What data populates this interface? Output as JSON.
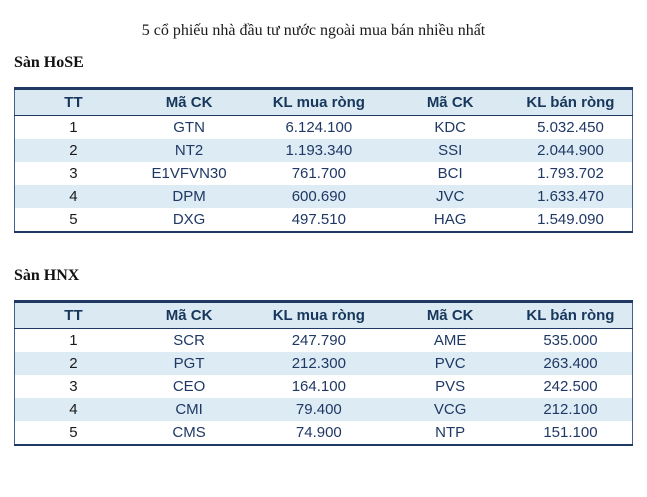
{
  "page": {
    "title": "5 cổ phiếu nhà đầu tư nước ngoài mua bán nhiều nhất"
  },
  "columns": {
    "tt": "TT",
    "ma_ck_mua": "Mã CK",
    "kl_mua_rong": "KL mua ròng",
    "ma_ck_ban": "Mã CK",
    "kl_ban_rong": "KL bán ròng"
  },
  "sections": [
    {
      "label": "Sàn HoSE",
      "rows": [
        [
          "1",
          "GTN",
          "6.124.100",
          "KDC",
          "5.032.450"
        ],
        [
          "2",
          "NT2",
          "1.193.340",
          "SSI",
          "2.044.900"
        ],
        [
          "3",
          "E1VFVN30",
          "761.700",
          "BCI",
          "1.793.702"
        ],
        [
          "4",
          "DPM",
          "600.690",
          "JVC",
          "1.633.470"
        ],
        [
          "5",
          "DXG",
          "497.510",
          "HAG",
          "1.549.090"
        ]
      ]
    },
    {
      "label": "Sàn HNX",
      "rows": [
        [
          "1",
          "SCR",
          "247.790",
          "AME",
          "535.000"
        ],
        [
          "2",
          "PGT",
          "212.300",
          "PVC",
          "263.400"
        ],
        [
          "3",
          "CEO",
          "164.100",
          "PVS",
          "242.500"
        ],
        [
          "4",
          "CMI",
          "79.400",
          "VCG",
          "212.100"
        ],
        [
          "5",
          "CMS",
          "74.900",
          "NTP",
          "151.100"
        ]
      ]
    }
  ],
  "colors": {
    "header_bg": "#dbe9f2",
    "header_text": "#17375c",
    "row_alt_bg": "#dcebf4",
    "data_text": "#1f3864",
    "tt_text": "#1a1a1a",
    "border_dark": "#1f3864",
    "border_side": "#44618c"
  }
}
